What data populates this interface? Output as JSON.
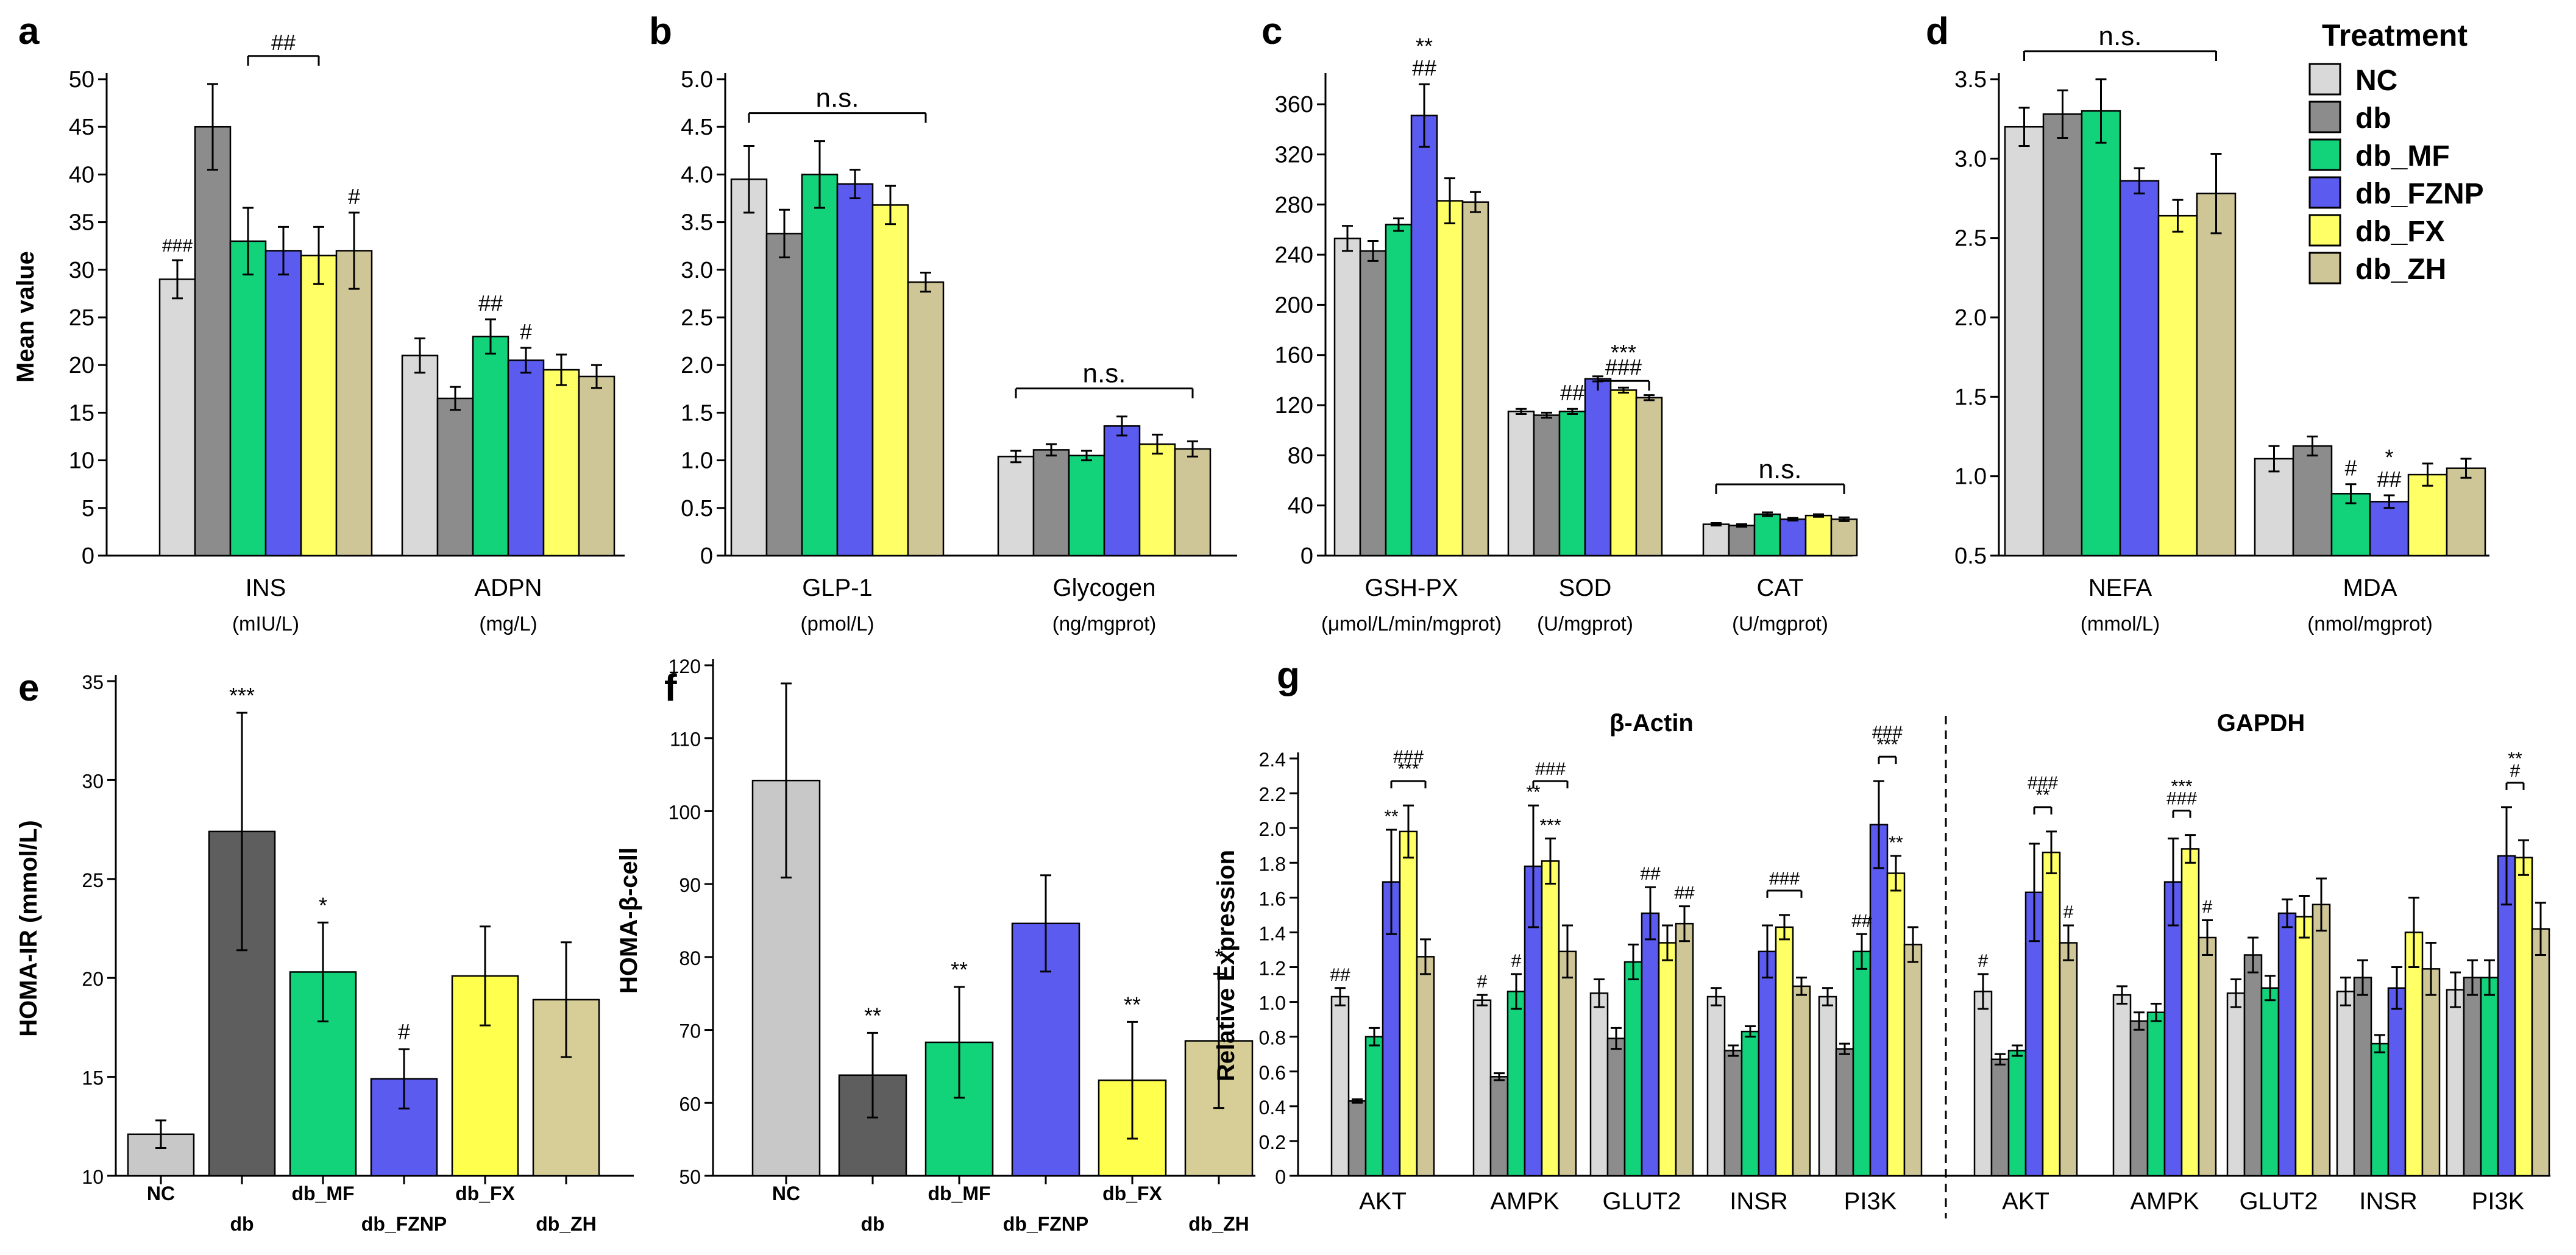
{
  "colors": {
    "NC": "#d9d9d9",
    "db": "#8c8c8c",
    "db_MF": "#12d27a",
    "db_FZNP": "#5b5bf0",
    "db_FX": "#ffff66",
    "db_ZH": "#cfc697"
  },
  "legend": {
    "title": "Treatment",
    "items": [
      "NC",
      "db",
      "db_MF",
      "db_FZNP",
      "db_FX",
      "db_ZH"
    ]
  },
  "chart_data": [
    {
      "panel": "a",
      "type": "bar",
      "ylabel": "Mean value",
      "ylim": [
        0,
        50
      ],
      "yticks": [
        "0",
        "5",
        "10",
        "15",
        "20",
        "25",
        "30",
        "35",
        "40",
        "45",
        "50"
      ],
      "groups": [
        {
          "name": "INS",
          "unit": "(mIU/L)",
          "values": [
            29,
            45,
            33,
            32,
            31.5,
            32
          ],
          "errors": [
            2,
            4.5,
            3.5,
            2.5,
            3,
            4
          ],
          "annotations": [
            {
              "bar": 0,
              "text": "###"
            },
            {
              "bar": 5,
              "text": "#"
            }
          ],
          "brackets": [
            {
              "from": 2,
              "to": 4,
              "text": "##"
            }
          ]
        },
        {
          "name": "ADPN",
          "unit": "(mg/L)",
          "values": [
            21,
            16.5,
            23,
            20.5,
            19.5,
            18.8
          ],
          "errors": [
            1.8,
            1.2,
            1.8,
            1.3,
            1.6,
            1.2
          ],
          "annotations": [
            {
              "bar": 2,
              "text": "##"
            },
            {
              "bar": 3,
              "text": "#"
            }
          ],
          "brackets": []
        }
      ]
    },
    {
      "panel": "b",
      "type": "bar",
      "ylabel": "",
      "ylim": [
        0,
        5
      ],
      "yticks": [
        "0",
        "0.5",
        "1.0",
        "1.5",
        "2.0",
        "2.5",
        "3.0",
        "3.5",
        "4.0",
        "4.5",
        "5.0"
      ],
      "groups": [
        {
          "name": "GLP-1",
          "unit": "(pmol/L)",
          "values": [
            3.95,
            3.38,
            4.0,
            3.9,
            3.68,
            2.87
          ],
          "errors": [
            0.35,
            0.25,
            0.35,
            0.15,
            0.2,
            0.1
          ],
          "annotations": [],
          "brackets": [
            {
              "from": 0,
              "to": 5,
              "text": "n.s."
            }
          ]
        },
        {
          "name": "Glycogen",
          "unit": "(ng/mgprot)",
          "values": [
            1.04,
            1.11,
            1.05,
            1.36,
            1.17,
            1.12
          ],
          "errors": [
            0.06,
            0.06,
            0.05,
            0.1,
            0.1,
            0.08
          ],
          "annotations": [],
          "brackets": [
            {
              "from": 0,
              "to": 5,
              "text": "n.s."
            }
          ]
        }
      ]
    },
    {
      "panel": "c",
      "type": "bar",
      "ylabel": "",
      "ylim": [
        0,
        380
      ],
      "yticks": [
        "0",
        "40",
        "80",
        "120",
        "160",
        "200",
        "240",
        "280",
        "320",
        "360"
      ],
      "groups": [
        {
          "name": "GSH-PX",
          "unit": "(μmol/L/min/mgprot)",
          "values": [
            253,
            243,
            264,
            351,
            283,
            282
          ],
          "errors": [
            10,
            8,
            5,
            25,
            18,
            8
          ],
          "annotations": [
            {
              "bar": 3,
              "text": "##"
            },
            {
              "bar": 3,
              "text": "**"
            }
          ],
          "brackets": []
        },
        {
          "name": "SOD",
          "unit": "(U/mgprot)",
          "values": [
            115,
            112,
            115,
            141,
            132,
            126
          ],
          "errors": [
            2,
            2,
            2,
            2,
            2,
            2
          ],
          "annotations": [
            {
              "bar": 2,
              "text": "##"
            }
          ],
          "brackets": [
            {
              "from": 3,
              "to": 5,
              "text": "###"
            },
            {
              "from": 3,
              "to": 5,
              "text": "***"
            }
          ]
        },
        {
          "name": "CAT",
          "unit": "(U/mgprot)",
          "values": [
            25,
            24,
            33,
            29,
            32,
            29
          ],
          "errors": [
            1,
            1,
            1.5,
            1,
            1,
            1.5
          ],
          "annotations": [],
          "brackets": [
            {
              "from": 0,
              "to": 5,
              "text": "n.s."
            }
          ]
        }
      ]
    },
    {
      "panel": "d",
      "type": "bar",
      "ylabel": "",
      "ylim": [
        0.5,
        3.5
      ],
      "yticks": [
        "0.5",
        "1.0",
        "1.5",
        "2.0",
        "2.5",
        "3.0",
        "3.5"
      ],
      "groups": [
        {
          "name": "NEFA",
          "unit": "(mmol/L)",
          "values": [
            3.2,
            3.28,
            3.3,
            2.86,
            2.64,
            2.78
          ],
          "errors": [
            0.12,
            0.15,
            0.2,
            0.08,
            0.1,
            0.25
          ],
          "annotations": [],
          "brackets": [
            {
              "from": 0,
              "to": 5,
              "text": "n.s."
            }
          ]
        },
        {
          "name": "MDA",
          "unit": "(nmol/mgprot)",
          "values": [
            1.11,
            1.19,
            0.89,
            0.84,
            1.01,
            1.05
          ],
          "errors": [
            0.08,
            0.06,
            0.06,
            0.04,
            0.07,
            0.06
          ],
          "annotations": [
            {
              "bar": 2,
              "text": "#"
            },
            {
              "bar": 3,
              "text": "##"
            },
            {
              "bar": 3,
              "text": "*"
            }
          ],
          "brackets": []
        }
      ]
    },
    {
      "panel": "e",
      "type": "bar",
      "ylabel": "HOMA-IR (mmol/L)",
      "ylim": [
        10,
        35
      ],
      "yticks": [
        "10",
        "15",
        "20",
        "25",
        "30",
        "35"
      ],
      "categories": [
        "NC",
        "db",
        "db_MF",
        "db_FZNP",
        "db_FX",
        "db_ZH"
      ],
      "values": [
        12.1,
        27.4,
        20.3,
        14.9,
        20.1,
        18.9
      ],
      "errors": [
        0.7,
        6.0,
        2.5,
        1.5,
        2.5,
        2.9
      ],
      "colors": [
        "#c8c8c8",
        "#5e5e5e",
        "#12d27a",
        "#5b5bf0",
        "#ffff4d",
        "#d6cd97"
      ],
      "annotations": [
        "",
        "***",
        "*",
        "#",
        "",
        ""
      ]
    },
    {
      "panel": "f",
      "type": "bar",
      "ylabel": "HOMA-β-cell",
      "ylim": [
        50,
        120
      ],
      "yticks": [
        "50",
        "60",
        "70",
        "80",
        "90",
        "100",
        "110",
        "120"
      ],
      "categories": [
        "NC",
        "db",
        "db_MF",
        "db_FZNP",
        "db_FX",
        "db_ZH"
      ],
      "values": [
        104.2,
        63.8,
        68.3,
        84.6,
        63.1,
        68.5
      ],
      "errors": [
        13.3,
        5.8,
        7.6,
        6.6,
        8.0,
        9.2
      ],
      "colors": [
        "#c8c8c8",
        "#5e5e5e",
        "#12d27a",
        "#5b5bf0",
        "#ffff4d",
        "#d6cd97"
      ],
      "annotations": [
        "",
        "**",
        "**",
        "",
        "**",
        "*"
      ]
    },
    {
      "panel": "g",
      "type": "bar",
      "ylabel": "Relative Expression",
      "ylim": [
        0,
        2.4
      ],
      "yticks": [
        "0",
        "0.2",
        "0.4",
        "0.6",
        "0.8",
        "1.0",
        "1.2",
        "1.4",
        "1.6",
        "1.8",
        "2.0",
        "2.2",
        "2.4"
      ],
      "sections": [
        {
          "title": "β-Actin",
          "groups": [
            {
              "name": "AKT",
              "values": [
                1.03,
                0.43,
                0.8,
                1.69,
                1.98,
                1.26
              ],
              "errors": [
                0.05,
                0.01,
                0.05,
                0.3,
                0.15,
                0.1
              ],
              "annotations": [
                {
                  "bar": 0,
                  "text": "##"
                },
                {
                  "bar": 3,
                  "text": "**"
                }
              ],
              "brackets": [
                {
                  "from": 3,
                  "to": 5,
                  "text": "***"
                },
                {
                  "from": 3,
                  "to": 5,
                  "text": "###"
                }
              ]
            },
            {
              "name": "AMPK",
              "values": [
                1.01,
                0.57,
                1.06,
                1.78,
                1.81,
                1.29
              ],
              "errors": [
                0.03,
                0.02,
                0.1,
                0.35,
                0.13,
                0.15
              ],
              "annotations": [
                {
                  "bar": 0,
                  "text": "#"
                },
                {
                  "bar": 2,
                  "text": "#"
                },
                {
                  "bar": 3,
                  "text": "**"
                },
                {
                  "bar": 4,
                  "text": "***"
                }
              ],
              "brackets": [
                {
                  "from": 3,
                  "to": 5,
                  "text": "###"
                }
              ]
            },
            {
              "name": "GLUT2",
              "values": [
                1.05,
                0.79,
                1.23,
                1.51,
                1.34,
                1.45
              ],
              "errors": [
                0.08,
                0.06,
                0.1,
                0.15,
                0.1,
                0.1
              ],
              "annotations": [
                {
                  "bar": 3,
                  "text": "##"
                },
                {
                  "bar": 5,
                  "text": "##"
                }
              ],
              "brackets": []
            },
            {
              "name": "INSR",
              "values": [
                1.03,
                0.72,
                0.83,
                1.29,
                1.43,
                1.09
              ],
              "errors": [
                0.05,
                0.03,
                0.03,
                0.15,
                0.07,
                0.05
              ],
              "annotations": [],
              "brackets": [
                {
                  "from": 3,
                  "to": 5,
                  "text": "###"
                }
              ]
            },
            {
              "name": "PI3K",
              "values": [
                1.03,
                0.73,
                1.29,
                2.02,
                1.74,
                1.33
              ],
              "errors": [
                0.05,
                0.03,
                0.1,
                0.25,
                0.1,
                0.1
              ],
              "annotations": [
                {
                  "bar": 2,
                  "text": "##"
                },
                {
                  "bar": 4,
                  "text": "**"
                }
              ],
              "brackets": [
                {
                  "from": 3,
                  "to": 4,
                  "text": "***"
                },
                {
                  "from": 3,
                  "to": 4,
                  "text": "###"
                }
              ]
            }
          ]
        },
        {
          "title": "GAPDH",
          "groups": [
            {
              "name": "AKT",
              "values": [
                1.06,
                0.67,
                0.72,
                1.63,
                1.86,
                1.34
              ],
              "errors": [
                0.1,
                0.03,
                0.03,
                0.28,
                0.12,
                0.1
              ],
              "annotations": [
                {
                  "bar": 0,
                  "text": "#"
                },
                {
                  "bar": 5,
                  "text": "#"
                }
              ],
              "brackets": [
                {
                  "from": 3,
                  "to": 4,
                  "text": "**"
                },
                {
                  "from": 3,
                  "to": 4,
                  "text": "###"
                }
              ]
            },
            {
              "name": "AMPK",
              "values": [
                1.04,
                0.89,
                0.94,
                1.69,
                1.88,
                1.37
              ],
              "errors": [
                0.05,
                0.05,
                0.05,
                0.25,
                0.08,
                0.1
              ],
              "annotations": [
                {
                  "bar": 5,
                  "text": "#"
                }
              ],
              "brackets": [
                {
                  "from": 3,
                  "to": 4,
                  "text": "###"
                },
                {
                  "from": 3,
                  "to": 4,
                  "text": "***"
                }
              ]
            },
            {
              "name": "GLUT2",
              "values": [
                1.05,
                1.27,
                1.08,
                1.51,
                1.49,
                1.56
              ],
              "errors": [
                0.08,
                0.1,
                0.07,
                0.08,
                0.12,
                0.15
              ],
              "annotations": [],
              "brackets": []
            },
            {
              "name": "INSR",
              "values": [
                1.06,
                1.14,
                0.76,
                1.08,
                1.4,
                1.19
              ],
              "errors": [
                0.08,
                0.1,
                0.05,
                0.12,
                0.2,
                0.15
              ],
              "annotations": [],
              "brackets": []
            },
            {
              "name": "PI3K",
              "values": [
                1.07,
                1.14,
                1.14,
                1.84,
                1.83,
                1.42
              ],
              "errors": [
                0.1,
                0.1,
                0.1,
                0.28,
                0.1,
                0.15
              ],
              "annotations": [],
              "brackets": [
                {
                  "from": 3,
                  "to": 4,
                  "text": "#"
                },
                {
                  "from": 3,
                  "to": 4,
                  "text": "**"
                }
              ]
            }
          ]
        }
      ]
    }
  ]
}
